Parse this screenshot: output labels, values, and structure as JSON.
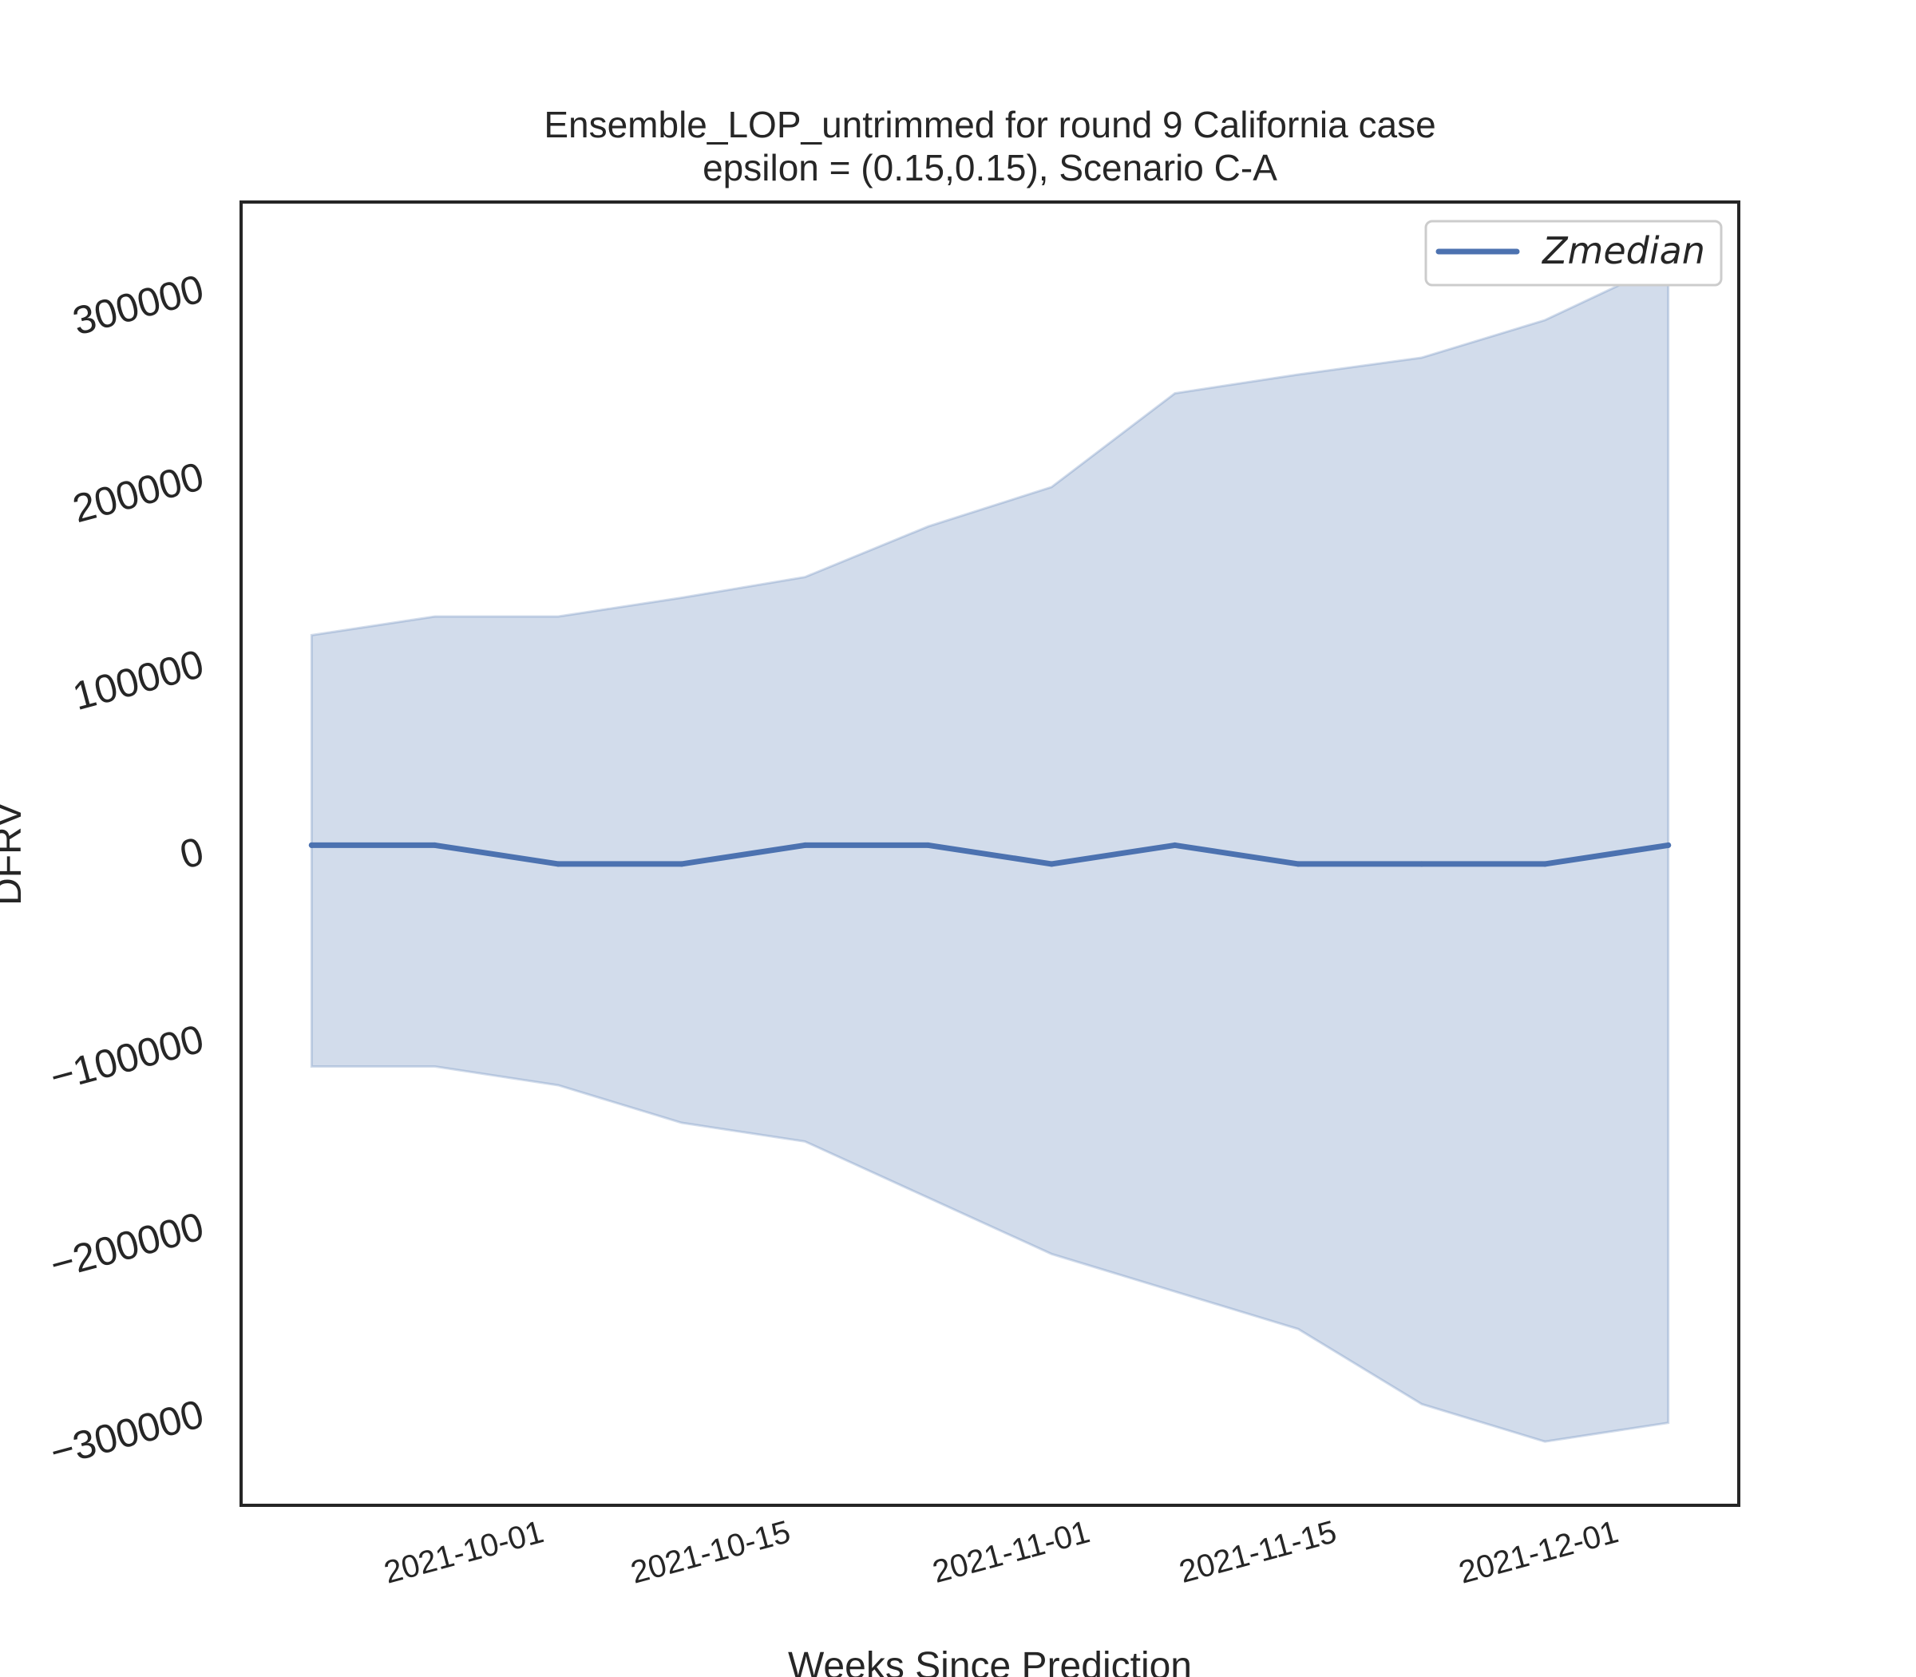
{
  "chart_data": {
    "type": "line",
    "title": "Ensemble_LOP_untrimmed for round 9 California  case",
    "subtitle": "epsilon = (0.15,0.15), Scenario C-A",
    "xlabel": "Weeks Since Prediction",
    "ylabel": "DFRV",
    "x": [
      "2021-09-18",
      "2021-09-25",
      "2021-10-02",
      "2021-10-09",
      "2021-10-16",
      "2021-10-23",
      "2021-10-30",
      "2021-11-06",
      "2021-11-13",
      "2021-11-20",
      "2021-11-27",
      "2021-12-04"
    ],
    "x_tick_labels": [
      "2021-10-01",
      "2021-10-15",
      "2021-11-01",
      "2021-11-15",
      "2021-12-01"
    ],
    "y_ticks": [
      -300000,
      -200000,
      -100000,
      0,
      100000,
      200000,
      300000
    ],
    "xlim": [
      "2021-09-14",
      "2021-12-08"
    ],
    "ylim": [
      -350000,
      345000
    ],
    "series": [
      {
        "name": "Zmedian",
        "color": "#4c72b0",
        "values": [
          2000,
          2000,
          -8000,
          -8000,
          2000,
          2000,
          -8000,
          2000,
          -8000,
          -8000,
          -8000,
          2000
        ]
      }
    ],
    "band": {
      "color": "#4c72b0",
      "opacity": 0.25,
      "upper": [
        114000,
        124000,
        124000,
        134000,
        145000,
        172000,
        193000,
        243000,
        253000,
        262000,
        282000,
        313000
      ],
      "lower": [
        -116000,
        -116000,
        -126000,
        -146000,
        -156000,
        -186000,
        -216000,
        -236000,
        -256000,
        -296000,
        -316000,
        -306000
      ]
    },
    "legend": {
      "position": "top-right",
      "entries": [
        "Zmedian"
      ]
    },
    "grid": false
  }
}
